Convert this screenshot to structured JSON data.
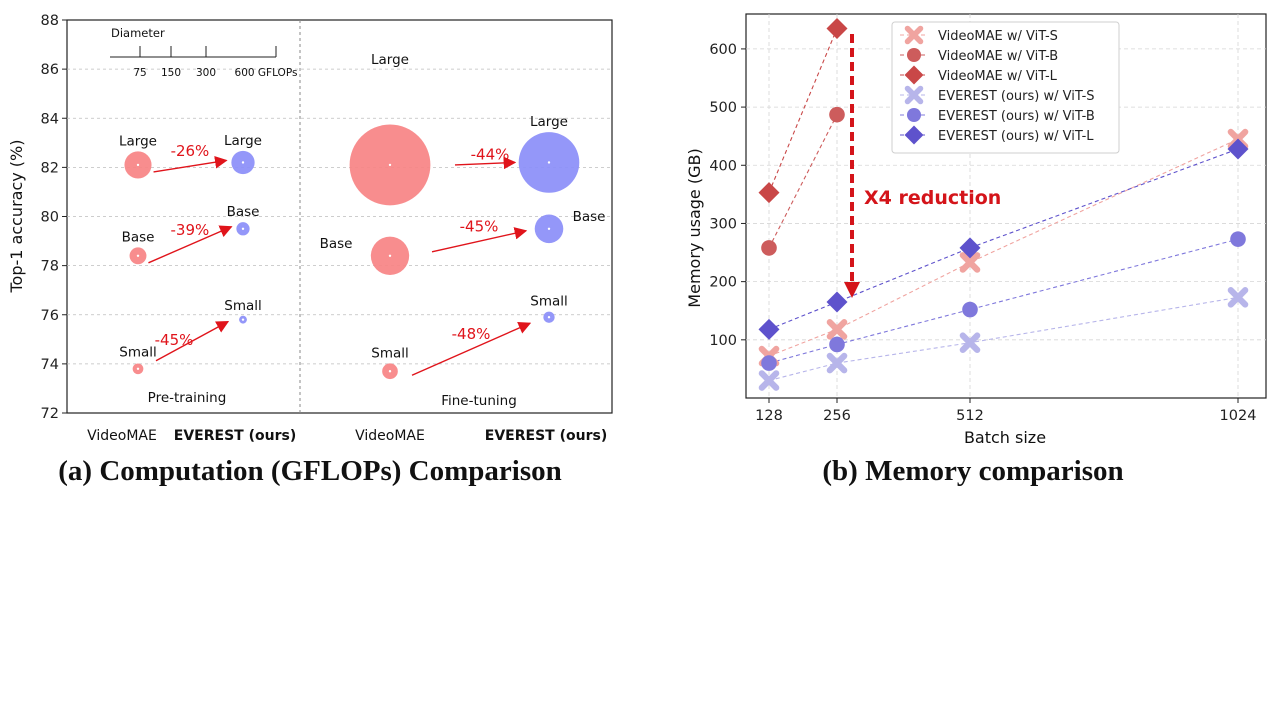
{
  "chart_data": [
    {
      "type": "scatter",
      "caption": "(a) Computation (GFLOPs) Comparison",
      "ylabel": "Top-1 accuracy (%)",
      "ylim": [
        72,
        88
      ],
      "yticks": [
        72,
        74,
        76,
        78,
        80,
        82,
        84,
        86,
        88
      ],
      "diameter_legend": {
        "title": "Diameter",
        "ticks": [
          "75",
          "150",
          "300",
          "600 GFLOPs"
        ]
      },
      "panels": [
        {
          "label": "Pre-training",
          "categories": [
            "VideoMAE",
            "EVEREST (ours)"
          ],
          "points": [
            {
              "method": "VideoMAE",
              "model": "Large",
              "accuracy": 82.1,
              "gflops": 180
            },
            {
              "method": "EVEREST (ours)",
              "model": "Large",
              "accuracy": 82.2,
              "gflops": 133
            },
            {
              "method": "VideoMAE",
              "model": "Base",
              "accuracy": 78.4,
              "gflops": 70
            },
            {
              "method": "EVEREST (ours)",
              "model": "Base",
              "accuracy": 79.5,
              "gflops": 43
            },
            {
              "method": "VideoMAE",
              "model": "Small",
              "accuracy": 73.8,
              "gflops": 28
            },
            {
              "method": "EVEREST (ours)",
              "model": "Small",
              "accuracy": 75.8,
              "gflops": 15
            }
          ],
          "reductions": [
            {
              "model": "Large",
              "text": "-26%"
            },
            {
              "model": "Base",
              "text": "-39%"
            },
            {
              "model": "Small",
              "text": "-45%"
            }
          ]
        },
        {
          "label": "Fine-tuning",
          "categories": [
            "VideoMAE",
            "EVEREST (ours)"
          ],
          "points": [
            {
              "method": "VideoMAE",
              "model": "Large",
              "accuracy": 82.1,
              "gflops": 1600
            },
            {
              "method": "EVEREST (ours)",
              "model": "Large",
              "accuracy": 82.2,
              "gflops": 900
            },
            {
              "method": "VideoMAE",
              "model": "Base",
              "accuracy": 78.4,
              "gflops": 360
            },
            {
              "method": "EVEREST (ours)",
              "model": "Base",
              "accuracy": 79.5,
              "gflops": 200
            },
            {
              "method": "VideoMAE",
              "model": "Small",
              "accuracy": 73.7,
              "gflops": 60
            },
            {
              "method": "EVEREST (ours)",
              "model": "Small",
              "accuracy": 75.9,
              "gflops": 31
            }
          ],
          "reductions": [
            {
              "model": "Large",
              "text": "-44%"
            },
            {
              "model": "Base",
              "text": "-45%"
            },
            {
              "model": "Small",
              "text": "-48%"
            }
          ]
        }
      ],
      "colors": {
        "VideoMAE": "#f78384",
        "EVEREST (ours)": "#8b8ef8",
        "reduction": "#e0141b"
      }
    },
    {
      "type": "line",
      "caption": "(b) Memory comparison",
      "xlabel": "Batch size",
      "ylabel": "Memory usage (GB)",
      "x": [
        128,
        256,
        512,
        1024
      ],
      "xticks": [
        "128",
        "256",
        "512",
        "1024"
      ],
      "ylim": [
        0,
        660
      ],
      "yticks": [
        100,
        200,
        300,
        400,
        500,
        600
      ],
      "grid": true,
      "legend_position": "top-right",
      "series": [
        {
          "name": "VideoMAE w/ ViT-S",
          "marker": "x",
          "color": "#f0a4a0",
          "values": [
            72,
            118,
            233,
            445
          ]
        },
        {
          "name": "VideoMAE w/ ViT-B",
          "marker": "circle",
          "color": "#cd5c5c",
          "values": [
            258,
            487,
            null,
            null
          ]
        },
        {
          "name": "VideoMAE w/ ViT-L",
          "marker": "diamond",
          "color": "#c94747",
          "values": [
            353,
            635,
            null,
            null
          ]
        },
        {
          "name": "EVEREST (ours) w/ ViT-S",
          "marker": "x",
          "color": "#b7b5ea",
          "values": [
            30,
            60,
            95,
            173
          ]
        },
        {
          "name": "EVEREST (ours) w/ ViT-B",
          "marker": "circle",
          "color": "#7f78dc",
          "values": [
            60,
            92,
            152,
            273
          ]
        },
        {
          "name": "EVEREST (ours) w/ ViT-L",
          "marker": "diamond",
          "color": "#5e52cc",
          "values": [
            118,
            165,
            258,
            428
          ]
        }
      ],
      "annotation": {
        "text": "X4 reduction",
        "x": 256,
        "from": 635,
        "to": 165,
        "color": "#d4141a"
      }
    }
  ]
}
